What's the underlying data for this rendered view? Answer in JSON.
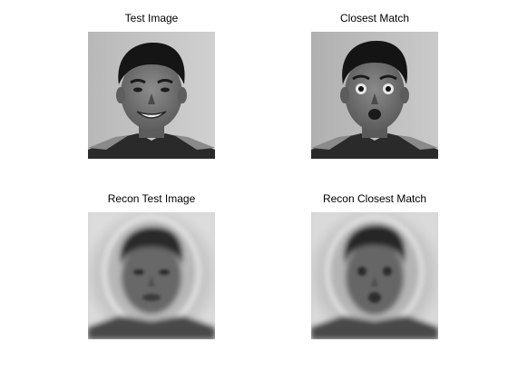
{
  "figure": {
    "panels": [
      {
        "title": "Test Image"
      },
      {
        "title": "Closest Match"
      },
      {
        "title": "Recon Test Image"
      },
      {
        "title": "Recon Closest Match"
      }
    ]
  }
}
